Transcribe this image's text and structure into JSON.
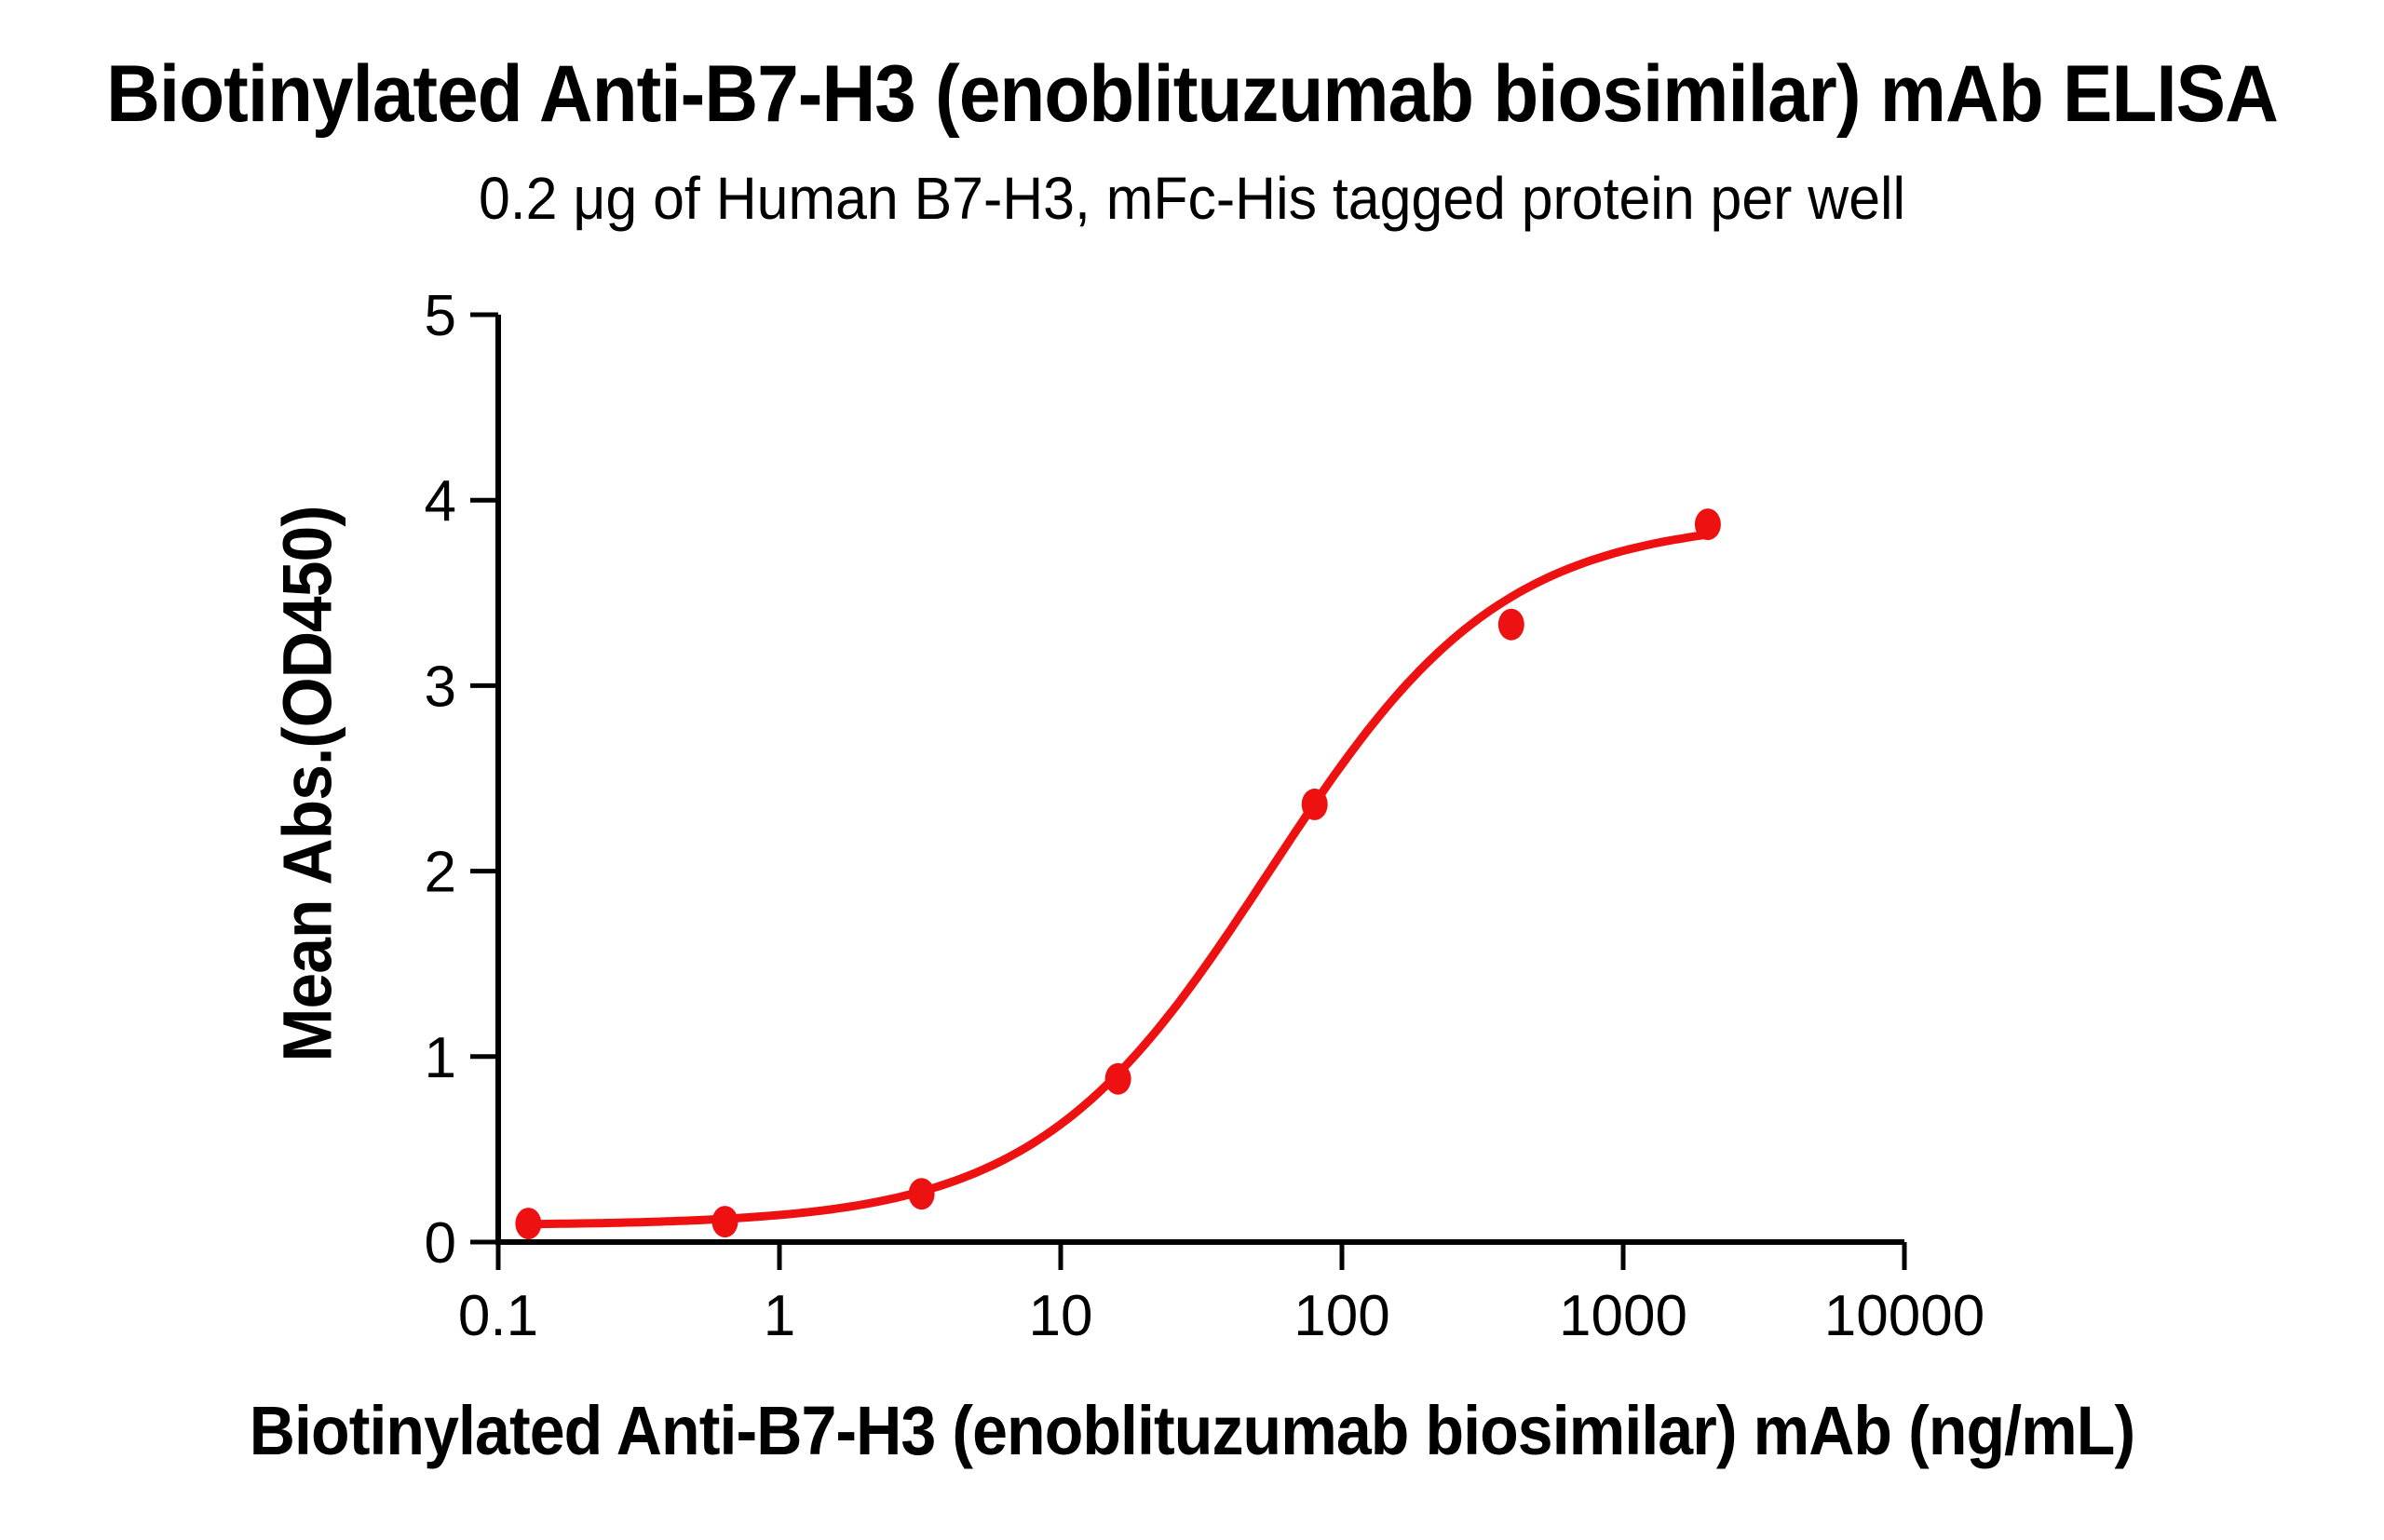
{
  "chart_data": {
    "type": "scatter",
    "title": "Biotinylated Anti-B7-H3 (enoblituzumab biosimilar) mAb ELISA",
    "subtitle": "0.2 μg of Human B7-H3, mFc-His tagged protein per well",
    "xlabel": "Biotinylated Anti-B7-H3 (enoblituzumab biosimilar) mAb (ng/mL)",
    "ylabel": "Mean Abs.(OD450)",
    "x_scale": "log10",
    "xlim": [
      0.1,
      10000
    ],
    "ylim": [
      0,
      5
    ],
    "x_ticks": [
      0.1,
      1,
      10,
      100,
      1000,
      10000
    ],
    "x_tick_labels": [
      "0.1",
      "1",
      "10",
      "100",
      "1000",
      "10000"
    ],
    "y_ticks": [
      0,
      1,
      2,
      3,
      4,
      5
    ],
    "y_tick_labels": [
      "0",
      "1",
      "2",
      "3",
      "4",
      "5"
    ],
    "grid": false,
    "legend_position": "none",
    "series": [
      {
        "name": "Biotinylated Anti-B7-H3 (enoblituzumab biosimilar) mAb",
        "marker": "circle",
        "color": "#EE1111",
        "points": [
          {
            "x": 0.128,
            "y": 0.1
          },
          {
            "x": 0.64,
            "y": 0.11
          },
          {
            "x": 3.2,
            "y": 0.26
          },
          {
            "x": 16,
            "y": 0.88
          },
          {
            "x": 80,
            "y": 2.36
          },
          {
            "x": 400,
            "y": 3.33
          },
          {
            "x": 2000,
            "y": 3.87
          }
        ],
        "fit_curve_4pl": {
          "bottom": 0.09,
          "top": 3.9,
          "ec50": 55,
          "hill": 1.05,
          "x_start": 0.128,
          "x_end": 2000
        }
      }
    ],
    "colors": {
      "axis": "#000000",
      "text": "#000000",
      "curve": "#EE1111",
      "background": "#FFFFFF"
    }
  }
}
